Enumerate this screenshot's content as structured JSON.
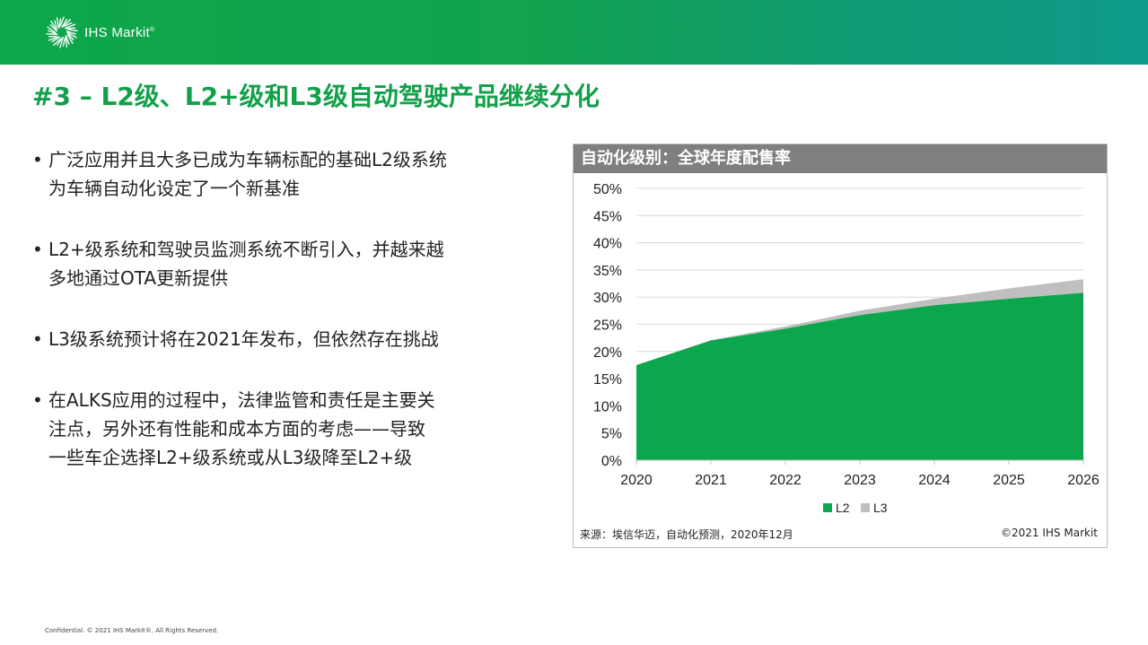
{
  "brand": {
    "name": "IHS Markit",
    "registered": "®"
  },
  "slide_title": "#3 – L2级、L2+级和L3级自动驾驶产品继续分化",
  "bullets": [
    {
      "lines": [
        "广泛应用并且大多已成为车辆标配的基础L2级系统",
        "为车辆自动化设定了一个新基准"
      ]
    },
    {
      "lines": [
        "L2+级系统和驾驶员监测系统不断引入，并越来越",
        "多地通过OTA更新提供"
      ]
    },
    {
      "lines": [
        "L3级系统预计将在2021年发布，但依然存在挑战"
      ]
    },
    {
      "lines": [
        "在ALKS应用的过程中，法律监管和责任是主要关",
        "注点，另外还有性能和成本方面的考虑——导致",
        "一些车企选择L2+级系统或从L3级降至L2+级"
      ]
    }
  ],
  "chart_panel": {
    "header": "自动化级别：全球年度配售率",
    "source": "来源：埃信华迈，自动化预测，2020年12月",
    "copyright": "©2021 IHS  Markit"
  },
  "chart_data": {
    "type": "area",
    "stacked": true,
    "x": [
      "2020",
      "2021",
      "2022",
      "2023",
      "2024",
      "2025",
      "2026"
    ],
    "series": [
      {
        "name": "L2",
        "values": [
          17.5,
          22.0,
          24.2,
          26.7,
          28.5,
          29.7,
          30.8
        ],
        "color": "#0ca64c"
      },
      {
        "name": "L3",
        "values": [
          0.0,
          0.1,
          0.4,
          0.8,
          1.2,
          1.9,
          2.5
        ],
        "color": "#bfbfbf"
      }
    ],
    "ylim": [
      0,
      50
    ],
    "yticks": [
      "0%",
      "5%",
      "10%",
      "15%",
      "20%",
      "25%",
      "30%",
      "35%",
      "40%",
      "45%",
      "50%"
    ],
    "grid": true,
    "legend": "bottom"
  },
  "footer": "Confidential. © 2021 IHS Markit®. All Rights Reserved."
}
